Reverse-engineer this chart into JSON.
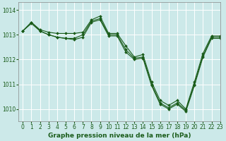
{
  "title": "Graphe pression niveau de la mer (hPa)",
  "xlim": [
    -0.5,
    23
  ],
  "ylim": [
    1009.5,
    1014.3
  ],
  "yticks": [
    1010,
    1011,
    1012,
    1013,
    1014
  ],
  "xticks": [
    0,
    1,
    2,
    3,
    4,
    5,
    6,
    7,
    8,
    9,
    10,
    11,
    12,
    13,
    14,
    15,
    16,
    17,
    18,
    19,
    20,
    21,
    22,
    23
  ],
  "background_color": "#cce9e9",
  "grid_color": "#ffffff",
  "line_color": "#1a5c1a",
  "series": [
    {
      "x": [
        0,
        1,
        2,
        3,
        4,
        5,
        6,
        7,
        8,
        9,
        10,
        11,
        12,
        13,
        14,
        15,
        16,
        17,
        18,
        19,
        20,
        21,
        22,
        23
      ],
      "y": [
        1013.15,
        1013.5,
        1013.2,
        1013.1,
        1013.05,
        1013.05,
        1013.05,
        1013.1,
        1013.6,
        1013.75,
        1013.05,
        1013.05,
        1012.55,
        1012.1,
        1012.2,
        1011.1,
        1010.35,
        1010.15,
        1010.35,
        1010.0,
        1011.1,
        1012.25,
        1012.95,
        1012.95
      ]
    },
    {
      "x": [
        0,
        1,
        2,
        3,
        4,
        5,
        6,
        7,
        8,
        9,
        10,
        11,
        12,
        13,
        14,
        15,
        16,
        17,
        18,
        19,
        20,
        21,
        22,
        23
      ],
      "y": [
        1013.15,
        1013.5,
        1013.15,
        1013.0,
        1012.9,
        1012.85,
        1012.85,
        1013.0,
        1013.55,
        1013.65,
        1013.0,
        1013.0,
        1012.4,
        1012.05,
        1012.1,
        1011.0,
        1010.25,
        1010.05,
        1010.25,
        1009.95,
        1011.0,
        1012.15,
        1012.9,
        1012.9
      ]
    },
    {
      "x": [
        0,
        1,
        2,
        3,
        4,
        5,
        6,
        7,
        8,
        9,
        10,
        11,
        12,
        13,
        14,
        15,
        16,
        17,
        18,
        19,
        20,
        21,
        22,
        23
      ],
      "y": [
        1013.15,
        1013.45,
        1013.15,
        1013.0,
        1012.9,
        1012.85,
        1012.8,
        1012.9,
        1013.5,
        1013.6,
        1012.95,
        1012.95,
        1012.3,
        1012.0,
        1012.05,
        1010.95,
        1010.2,
        1010.0,
        1010.2,
        1009.9,
        1010.95,
        1012.1,
        1012.85,
        1012.85
      ]
    }
  ],
  "title_fontsize": 6.5,
  "tick_fontsize": 5.5,
  "linewidth": 0.8,
  "markersize": 2.0
}
